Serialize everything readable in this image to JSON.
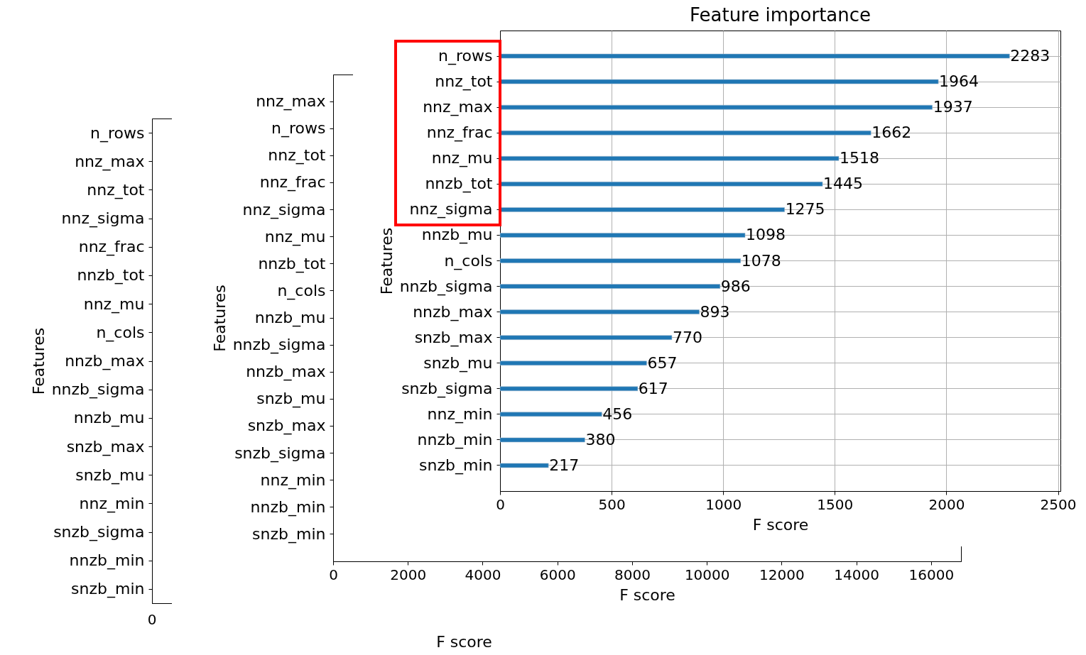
{
  "chart_data": [
    {
      "type": "other",
      "xlabel": "F score",
      "ylabel": "Features",
      "categories": [
        "n_rows",
        "nnz_max",
        "nnz_tot",
        "nnz_sigma",
        "nnz_frac",
        "nnzb_tot",
        "nnz_mu",
        "n_cols",
        "nnzb_max",
        "nnzb_sigma",
        "nnzb_mu",
        "snzb_max",
        "snzb_mu",
        "nnz_min",
        "snzb_sigma",
        "nnzb_min",
        "snzb_min"
      ],
      "annotations": [
        "0"
      ]
    },
    {
      "type": "bar",
      "orientation": "horizontal",
      "xlabel": "F score",
      "ylabel": "Features",
      "categories": [
        "nnz_max",
        "n_rows",
        "nnz_tot",
        "nnz_frac",
        "nnz_sigma",
        "nnz_mu",
        "nnzb_tot",
        "n_cols",
        "nnzb_mu",
        "nnzb_sigma",
        "nnzb_max",
        "snzb_mu",
        "snzb_max",
        "snzb_sigma",
        "nnz_min",
        "nnzb_min",
        "snzb_min"
      ],
      "values": [
        null,
        null,
        null,
        null,
        null,
        null,
        null,
        null,
        null,
        null,
        null,
        null,
        null,
        null,
        null,
        null,
        null
      ],
      "color": "#1f77b4",
      "xlim": [
        0,
        16800
      ],
      "xticks": [
        0,
        2000,
        4000,
        6000,
        8000,
        10000,
        12000,
        14000,
        16000
      ]
    },
    {
      "type": "bar",
      "orientation": "horizontal",
      "title": "Feature importance",
      "xlabel": "F score",
      "ylabel": "Features",
      "categories": [
        "n_rows",
        "nnz_tot",
        "nnz_max",
        "nnz_frac",
        "nnz_mu",
        "nnzb_tot",
        "nnz_sigma",
        "nnzb_mu",
        "n_cols",
        "nnzb_sigma",
        "nnzb_max",
        "snzb_max",
        "snzb_mu",
        "snzb_sigma",
        "nnz_min",
        "nnzb_min",
        "snzb_min"
      ],
      "values": [
        2283,
        1964,
        1937,
        1662,
        1518,
        1445,
        1275,
        1098,
        1078,
        986,
        893,
        770,
        657,
        617,
        456,
        380,
        217
      ],
      "color": "#1f77b4",
      "xlim": [
        0,
        2511
      ],
      "xticks": [
        0,
        500,
        1000,
        1500,
        2000,
        2500
      ],
      "grid": true,
      "data_labels": true
    }
  ]
}
